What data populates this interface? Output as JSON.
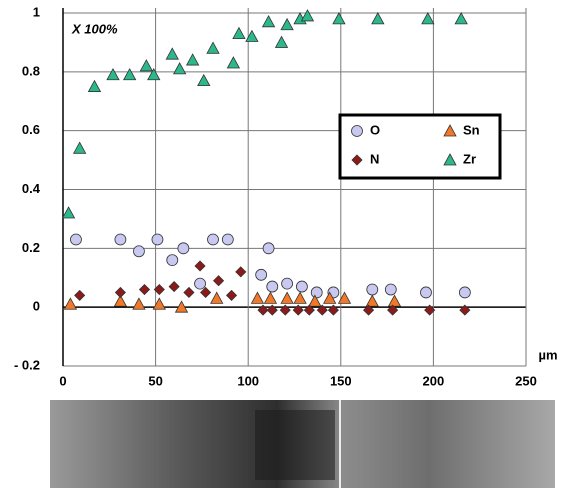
{
  "chart_data": {
    "type": "scatter",
    "annotation": "X 100%",
    "x_label": "µm",
    "xlim": [
      0,
      250
    ],
    "xticks": [
      0,
      50,
      100,
      150,
      200,
      250
    ],
    "ylim": [
      -0.2,
      1
    ],
    "yticks": [
      {
        "value": -0.2,
        "label": "- 0.2"
      },
      0,
      0.2,
      0.4,
      0.6,
      0.8,
      1
    ],
    "grid": true,
    "legend": "upper right",
    "series": [
      {
        "name": "O",
        "color": "#c8c8f0",
        "marker": "circle",
        "x": [
          7,
          31,
          41,
          51,
          59,
          65,
          74,
          81,
          89,
          107,
          111,
          113,
          121,
          129,
          137,
          146,
          167,
          177,
          196,
          217
        ],
        "values": [
          0.23,
          0.23,
          0.19,
          0.23,
          0.16,
          0.2,
          0.08,
          0.23,
          0.23,
          0.11,
          0.2,
          0.07,
          0.08,
          0.07,
          0.05,
          0.05,
          0.06,
          0.06,
          0.05,
          0.05
        ]
      },
      {
        "name": "Sn",
        "color": "#f07828",
        "marker": "triangle",
        "x": [
          4,
          31,
          41,
          52,
          64,
          83,
          105,
          112,
          121,
          128,
          136,
          144,
          152,
          167,
          179
        ],
        "values": [
          0.01,
          0.02,
          0.01,
          0.01,
          0,
          0.03,
          0.03,
          0.03,
          0.03,
          0.03,
          0.02,
          0.03,
          0.03,
          0.02,
          0.02
        ]
      },
      {
        "name": "N",
        "color": "#8b1a1a",
        "marker": "diamond",
        "x": [
          9,
          31,
          44,
          52,
          60,
          68,
          74,
          77,
          84,
          91,
          96,
          108,
          113,
          120,
          127,
          133,
          140,
          146,
          165,
          178,
          198,
          217
        ],
        "values": [
          0.04,
          0.05,
          0.06,
          0.06,
          0.07,
          0.05,
          0.14,
          0.05,
          0.09,
          0.04,
          0.12,
          -0.01,
          -0.01,
          -0.01,
          -0.01,
          -0.01,
          -0.01,
          -0.01,
          -0.01,
          -0.01,
          -0.01,
          -0.01
        ]
      },
      {
        "name": "Zr",
        "color": "#2cb88c",
        "marker": "triangle",
        "x": [
          3,
          9,
          17,
          27,
          36,
          45,
          49,
          59,
          63,
          70,
          76,
          81,
          92,
          95,
          102,
          111,
          118,
          121,
          128,
          132,
          149,
          170,
          197,
          215
        ],
        "values": [
          0.32,
          0.54,
          0.75,
          0.79,
          0.79,
          0.82,
          0.79,
          0.86,
          0.81,
          0.84,
          0.77,
          0.88,
          0.83,
          0.93,
          0.92,
          0.97,
          0.9,
          0.96,
          0.98,
          0.99,
          0.98,
          0.98,
          0.98,
          0.98
        ]
      }
    ]
  }
}
